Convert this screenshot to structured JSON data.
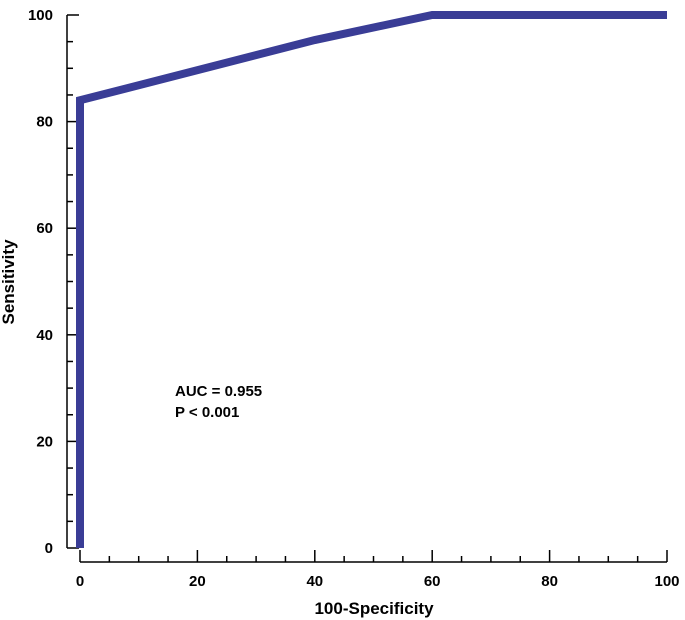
{
  "chart_data": {
    "type": "line",
    "xlabel": "100-Specificity",
    "ylabel": "Sensitivity",
    "xlim": [
      0,
      100
    ],
    "ylim": [
      0,
      100
    ],
    "x_ticks": [
      0,
      20,
      40,
      60,
      80,
      100
    ],
    "y_ticks": [
      0,
      20,
      40,
      60,
      80,
      100
    ],
    "series": [
      {
        "color": "#3a3d96",
        "x": [
          0,
          0,
          40,
          60,
          100
        ],
        "y": [
          0,
          84,
          95.3,
          100,
          100
        ]
      }
    ],
    "annotations": [
      "AUC = 0.955",
      "P < 0.001"
    ],
    "grid": false
  }
}
